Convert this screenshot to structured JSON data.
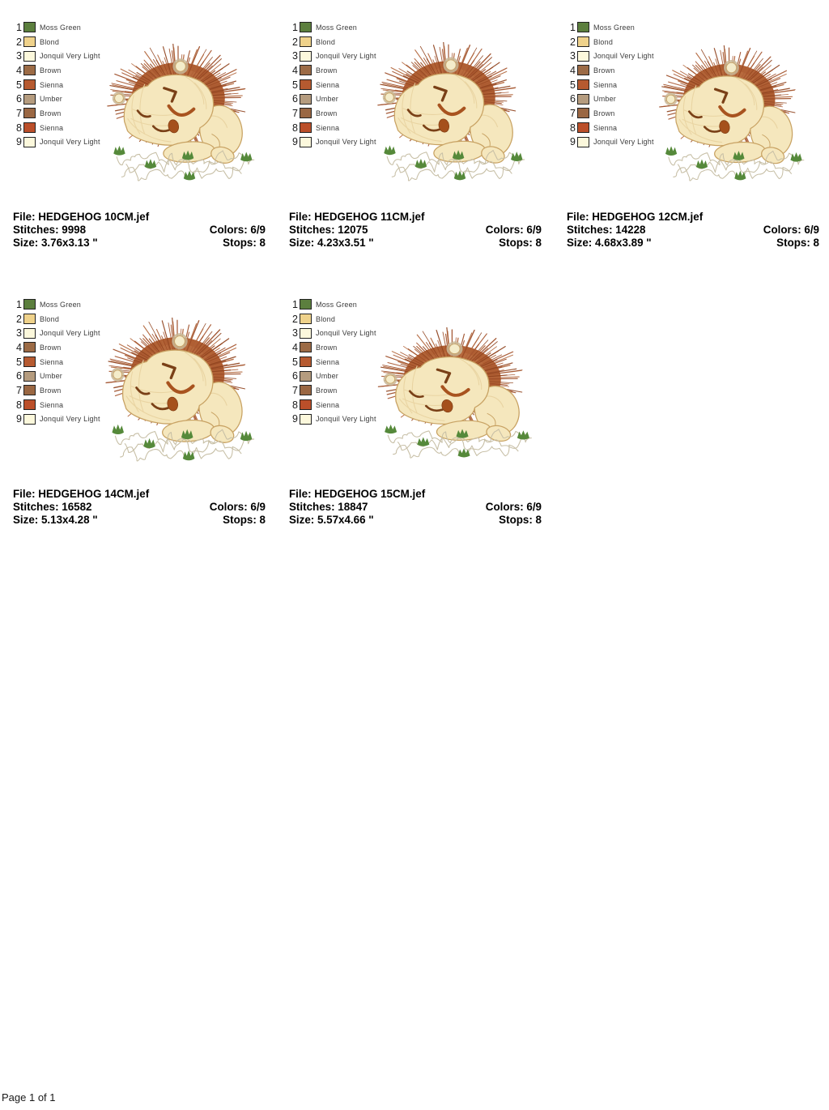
{
  "page": {
    "footer": "Page 1 of 1"
  },
  "legend": {
    "items": [
      {
        "num": "1",
        "label": "Moss Green",
        "color": "#5c7f3e"
      },
      {
        "num": "2",
        "label": "Blond",
        "color": "#efd28b"
      },
      {
        "num": "3",
        "label": "Jonquil Very Light",
        "color": "#fcf8dc"
      },
      {
        "num": "4",
        "label": "Brown",
        "color": "#9c6b46"
      },
      {
        "num": "5",
        "label": "Sienna",
        "color": "#b65a30"
      },
      {
        "num": "6",
        "label": "Umber",
        "color": "#b59c7f"
      },
      {
        "num": "7",
        "label": "Brown",
        "color": "#9a6743"
      },
      {
        "num": "8",
        "label": "Sienna",
        "color": "#bb4f2a"
      },
      {
        "num": "9",
        "label": "Jonquil Very Light",
        "color": "#fcf8dc"
      }
    ]
  },
  "designs": [
    {
      "file": "File: HEDGEHOG 10CM.jef",
      "stitches": "Stitches: 9998",
      "colors": "Colors: 6/9",
      "size": "Size: 3.76x3.13 \"",
      "stops": "Stops: 8"
    },
    {
      "file": "File: HEDGEHOG 11CM.jef",
      "stitches": "Stitches: 12075",
      "colors": "Colors: 6/9",
      "size": "Size: 4.23x3.51 \"",
      "stops": "Stops: 8"
    },
    {
      "file": "File: HEDGEHOG 12CM.jef",
      "stitches": "Stitches: 14228",
      "colors": "Colors: 6/9",
      "size": "Size: 4.68x3.89 \"",
      "stops": "Stops: 8"
    },
    {
      "file": "File: HEDGEHOG 14CM.jef",
      "stitches": "Stitches: 16582",
      "colors": "Colors: 6/9",
      "size": "Size: 5.13x4.28 \"",
      "stops": "Stops: 8"
    },
    {
      "file": "File: HEDGEHOG 15CM.jef",
      "stitches": "Stitches: 18847",
      "colors": "Colors: 6/9",
      "size": "Size: 5.57x4.66 \"",
      "stops": "Stops: 8"
    }
  ],
  "artwork": {
    "subject": "sleeping hedgehog embroidery",
    "body": "#b05f33",
    "body_light": "#c07346",
    "spike_colors": [
      "#9d4c26",
      "#a85832",
      "#914520",
      "#b2653a"
    ],
    "cream": "#f5e7bd",
    "outline": "#c8a263",
    "shading": "#e9d4a2",
    "marks": "#7a4017",
    "eye": "#a8531f",
    "nose": "#a5501c",
    "nose_edge": "#7e3b12",
    "ear": "#f4ecca",
    "ear_ring": "#c9b795",
    "grass_line": "#c7bfa6",
    "leaf": "#55893a"
  }
}
